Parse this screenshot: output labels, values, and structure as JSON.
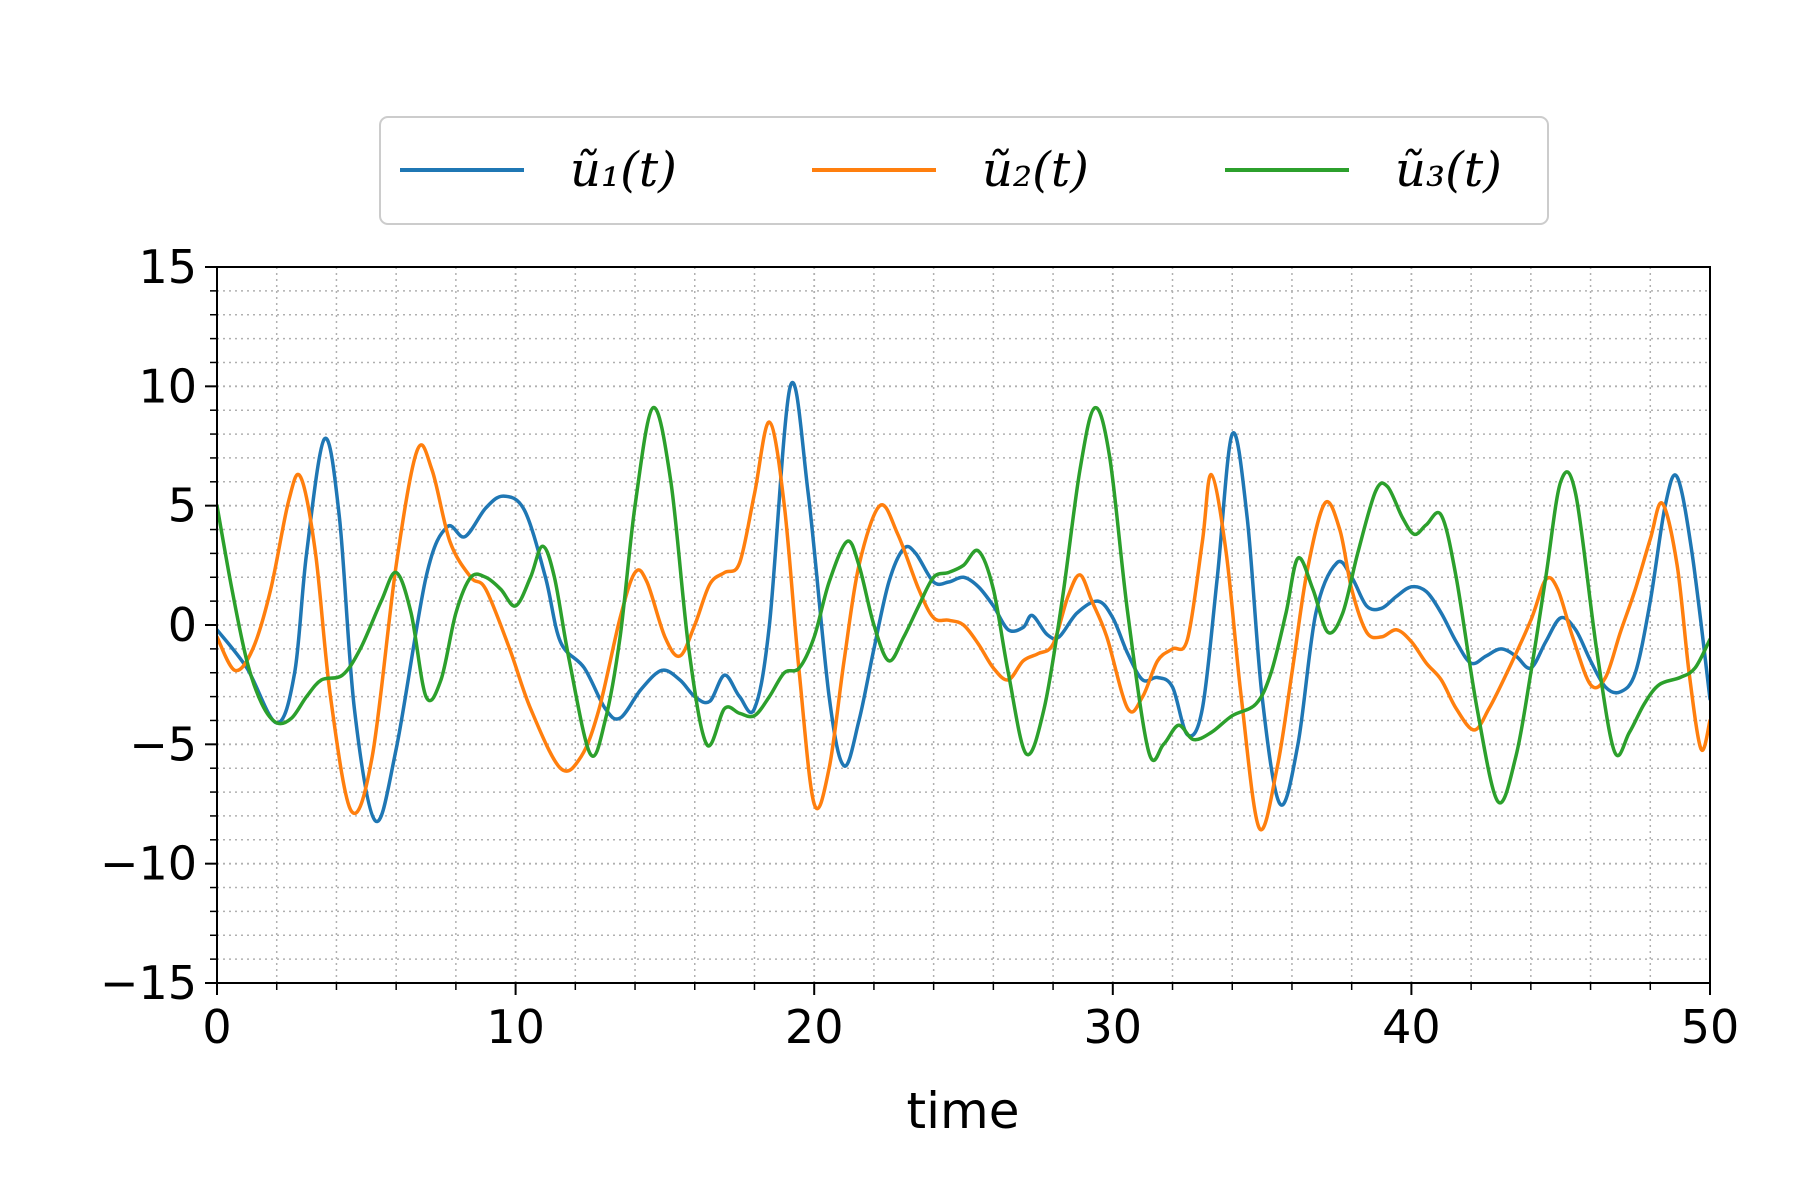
{
  "chart_data": {
    "type": "line",
    "title": "",
    "xlabel": "time",
    "ylabel": "",
    "xlim": [
      0,
      50
    ],
    "ylim": [
      -15,
      15
    ],
    "xticks": [
      0,
      10,
      20,
      30,
      40,
      50
    ],
    "xtick_labels": [
      "0",
      "10",
      "20",
      "30",
      "40",
      "50"
    ],
    "yticks": [
      15,
      10,
      5,
      0,
      -5,
      -10,
      -15
    ],
    "ytick_labels": [
      "15",
      "10",
      "5",
      "0",
      "−5",
      "−10",
      "−15"
    ],
    "grid": true,
    "legend_placement": "top-center",
    "series": [
      {
        "name": "ũ₁(t)",
        "color": "#1f77b4",
        "points": [
          [
            0,
            -0.2
          ],
          [
            1,
            -1.8
          ],
          [
            2,
            -4.1
          ],
          [
            2.6,
            -2.0
          ],
          [
            3.0,
            3.0
          ],
          [
            3.6,
            7.8
          ],
          [
            4.1,
            4.5
          ],
          [
            4.6,
            -3.5
          ],
          [
            5.3,
            -8.2
          ],
          [
            6.0,
            -5.2
          ],
          [
            7.0,
            2.0
          ],
          [
            7.7,
            4.1
          ],
          [
            8.3,
            3.7
          ],
          [
            9.0,
            4.9
          ],
          [
            9.6,
            5.4
          ],
          [
            10.3,
            4.8
          ],
          [
            11.0,
            2.0
          ],
          [
            11.5,
            -0.7
          ],
          [
            12.3,
            -1.8
          ],
          [
            13.0,
            -3.5
          ],
          [
            13.5,
            -3.9
          ],
          [
            14.2,
            -2.7
          ],
          [
            14.9,
            -1.9
          ],
          [
            15.5,
            -2.3
          ],
          [
            16.0,
            -3.0
          ],
          [
            16.5,
            -3.2
          ],
          [
            17.0,
            -2.1
          ],
          [
            17.5,
            -3.0
          ],
          [
            18.0,
            -3.5
          ],
          [
            18.5,
            0.0
          ],
          [
            19.2,
            10.0
          ],
          [
            19.8,
            5.5
          ],
          [
            20.5,
            -3.0
          ],
          [
            21.0,
            -5.9
          ],
          [
            21.5,
            -4.0
          ],
          [
            22.0,
            -1.0
          ],
          [
            22.5,
            1.8
          ],
          [
            23.0,
            3.2
          ],
          [
            23.4,
            3.0
          ],
          [
            24.0,
            1.8
          ],
          [
            24.5,
            1.8
          ],
          [
            25.0,
            2.0
          ],
          [
            25.5,
            1.6
          ],
          [
            26.0,
            0.8
          ],
          [
            26.5,
            -0.2
          ],
          [
            27.0,
            -0.1
          ],
          [
            27.3,
            0.4
          ],
          [
            27.8,
            -0.4
          ],
          [
            28.2,
            -0.5
          ],
          [
            28.8,
            0.5
          ],
          [
            29.5,
            1.0
          ],
          [
            30.0,
            0.3
          ],
          [
            30.5,
            -1.2
          ],
          [
            31.0,
            -2.3
          ],
          [
            31.5,
            -2.2
          ],
          [
            32.0,
            -2.6
          ],
          [
            32.5,
            -4.6
          ],
          [
            33.0,
            -3.5
          ],
          [
            33.5,
            2.0
          ],
          [
            34.0,
            8.0
          ],
          [
            34.5,
            4.5
          ],
          [
            35.0,
            -3.0
          ],
          [
            35.6,
            -7.5
          ],
          [
            36.2,
            -5.0
          ],
          [
            36.8,
            0.5
          ],
          [
            37.5,
            2.6
          ],
          [
            38.0,
            2.0
          ],
          [
            38.5,
            0.8
          ],
          [
            39.0,
            0.7
          ],
          [
            39.5,
            1.2
          ],
          [
            40.0,
            1.6
          ],
          [
            40.5,
            1.4
          ],
          [
            41.0,
            0.5
          ],
          [
            41.5,
            -0.7
          ],
          [
            42.0,
            -1.6
          ],
          [
            42.5,
            -1.3
          ],
          [
            43.0,
            -1.0
          ],
          [
            43.5,
            -1.3
          ],
          [
            44.0,
            -1.8
          ],
          [
            44.5,
            -0.7
          ],
          [
            45.0,
            0.3
          ],
          [
            45.5,
            -0.2
          ],
          [
            46.0,
            -1.5
          ],
          [
            46.5,
            -2.6
          ],
          [
            47.0,
            -2.8
          ],
          [
            47.5,
            -2.0
          ],
          [
            48.0,
            1.0
          ],
          [
            48.5,
            5.0
          ],
          [
            48.9,
            6.2
          ],
          [
            49.4,
            3.0
          ],
          [
            50,
            -3.1
          ]
        ]
      },
      {
        "name": "ũ₂(t)",
        "color": "#ff7f0e",
        "points": [
          [
            0,
            -0.5
          ],
          [
            0.6,
            -1.9
          ],
          [
            1.2,
            -1.0
          ],
          [
            1.8,
            1.5
          ],
          [
            2.4,
            5.2
          ],
          [
            2.8,
            6.2
          ],
          [
            3.3,
            3.0
          ],
          [
            3.8,
            -3.0
          ],
          [
            4.5,
            -7.8
          ],
          [
            5.2,
            -5.5
          ],
          [
            6.0,
            2.5
          ],
          [
            6.7,
            7.3
          ],
          [
            7.2,
            6.5
          ],
          [
            7.8,
            3.5
          ],
          [
            8.5,
            2.0
          ],
          [
            9.0,
            1.5
          ],
          [
            9.8,
            -1.0
          ],
          [
            10.5,
            -3.5
          ],
          [
            11.5,
            -6.0
          ],
          [
            12.2,
            -5.5
          ],
          [
            12.8,
            -3.5
          ],
          [
            13.5,
            0.3
          ],
          [
            14.0,
            2.2
          ],
          [
            14.4,
            1.8
          ],
          [
            15.0,
            -0.5
          ],
          [
            15.5,
            -1.3
          ],
          [
            16.0,
            0.0
          ],
          [
            16.5,
            1.7
          ],
          [
            17.0,
            2.2
          ],
          [
            17.5,
            2.6
          ],
          [
            18.0,
            5.5
          ],
          [
            18.5,
            8.5
          ],
          [
            19.0,
            5.0
          ],
          [
            19.5,
            -2.0
          ],
          [
            20.0,
            -7.5
          ],
          [
            20.5,
            -6.0
          ],
          [
            21.0,
            -1.5
          ],
          [
            21.5,
            2.5
          ],
          [
            22.2,
            5.0
          ],
          [
            22.8,
            3.8
          ],
          [
            23.5,
            1.5
          ],
          [
            24.0,
            0.3
          ],
          [
            24.5,
            0.2
          ],
          [
            25.0,
            0.0
          ],
          [
            25.5,
            -0.8
          ],
          [
            26.0,
            -1.8
          ],
          [
            26.5,
            -2.3
          ],
          [
            27.0,
            -1.5
          ],
          [
            27.5,
            -1.2
          ],
          [
            28.0,
            -0.8
          ],
          [
            28.5,
            1.2
          ],
          [
            28.9,
            2.1
          ],
          [
            29.3,
            1.0
          ],
          [
            29.8,
            -0.5
          ],
          [
            30.5,
            -3.5
          ],
          [
            31.0,
            -3.0
          ],
          [
            31.5,
            -1.5
          ],
          [
            32.0,
            -1.0
          ],
          [
            32.5,
            -0.6
          ],
          [
            33.0,
            3.5
          ],
          [
            33.3,
            6.3
          ],
          [
            33.8,
            3.0
          ],
          [
            34.3,
            -3.0
          ],
          [
            34.9,
            -8.5
          ],
          [
            35.5,
            -6.0
          ],
          [
            36.0,
            -2.0
          ],
          [
            36.5,
            2.2
          ],
          [
            37.1,
            5.1
          ],
          [
            37.6,
            4.0
          ],
          [
            38.0,
            1.5
          ],
          [
            38.5,
            -0.3
          ],
          [
            39.0,
            -0.5
          ],
          [
            39.5,
            -0.2
          ],
          [
            40.0,
            -0.7
          ],
          [
            40.5,
            -1.6
          ],
          [
            41.0,
            -2.3
          ],
          [
            41.5,
            -3.5
          ],
          [
            42.1,
            -4.4
          ],
          [
            42.6,
            -3.5
          ],
          [
            43.2,
            -2.0
          ],
          [
            44.0,
            0.2
          ],
          [
            44.5,
            1.9
          ],
          [
            44.9,
            1.5
          ],
          [
            45.4,
            -0.5
          ],
          [
            46.0,
            -2.5
          ],
          [
            46.5,
            -2.2
          ],
          [
            47.0,
            -0.3
          ],
          [
            47.5,
            1.5
          ],
          [
            48.0,
            3.6
          ],
          [
            48.4,
            5.1
          ],
          [
            48.9,
            2.5
          ],
          [
            49.3,
            -2.0
          ],
          [
            49.7,
            -5.2
          ],
          [
            50,
            -4.0
          ]
        ]
      },
      {
        "name": "ũ₃(t)",
        "color": "#2ca02c",
        "points": [
          [
            0,
            5.0
          ],
          [
            0.5,
            1.5
          ],
          [
            1.0,
            -1.5
          ],
          [
            1.5,
            -3.3
          ],
          [
            2.0,
            -4.1
          ],
          [
            2.5,
            -3.9
          ],
          [
            3.0,
            -3.0
          ],
          [
            3.5,
            -2.3
          ],
          [
            4.2,
            -2.1
          ],
          [
            4.8,
            -1.0
          ],
          [
            5.5,
            1.0
          ],
          [
            6.0,
            2.2
          ],
          [
            6.5,
            0.5
          ],
          [
            7.0,
            -3.0
          ],
          [
            7.5,
            -2.3
          ],
          [
            8.0,
            0.5
          ],
          [
            8.5,
            2.0
          ],
          [
            9.0,
            2.0
          ],
          [
            9.5,
            1.5
          ],
          [
            10.0,
            0.8
          ],
          [
            10.5,
            2.0
          ],
          [
            10.9,
            3.3
          ],
          [
            11.3,
            2.0
          ],
          [
            11.8,
            -1.5
          ],
          [
            12.5,
            -5.4
          ],
          [
            13.0,
            -4.0
          ],
          [
            13.5,
            -0.5
          ],
          [
            14.0,
            5.0
          ],
          [
            14.6,
            9.1
          ],
          [
            15.2,
            6.0
          ],
          [
            15.8,
            -1.0
          ],
          [
            16.4,
            -5.0
          ],
          [
            17.0,
            -3.5
          ],
          [
            17.5,
            -3.7
          ],
          [
            18.0,
            -3.8
          ],
          [
            18.5,
            -3.0
          ],
          [
            19.0,
            -2.0
          ],
          [
            19.5,
            -1.8
          ],
          [
            20.0,
            -0.5
          ],
          [
            20.5,
            1.8
          ],
          [
            21.1,
            3.5
          ],
          [
            21.5,
            2.5
          ],
          [
            22.0,
            0.0
          ],
          [
            22.5,
            -1.5
          ],
          [
            23.0,
            -0.5
          ],
          [
            23.5,
            0.8
          ],
          [
            24.0,
            2.0
          ],
          [
            24.5,
            2.2
          ],
          [
            25.0,
            2.5
          ],
          [
            25.5,
            3.1
          ],
          [
            26.0,
            1.5
          ],
          [
            26.5,
            -2.0
          ],
          [
            27.1,
            -5.4
          ],
          [
            27.7,
            -3.5
          ],
          [
            28.3,
            1.0
          ],
          [
            28.9,
            6.5
          ],
          [
            29.4,
            9.1
          ],
          [
            29.9,
            7.0
          ],
          [
            30.5,
            0.5
          ],
          [
            31.2,
            -5.3
          ],
          [
            31.7,
            -5.0
          ],
          [
            32.2,
            -4.2
          ],
          [
            32.7,
            -4.8
          ],
          [
            33.3,
            -4.5
          ],
          [
            34.0,
            -3.8
          ],
          [
            34.8,
            -3.3
          ],
          [
            35.3,
            -2.0
          ],
          [
            35.8,
            0.5
          ],
          [
            36.2,
            2.8
          ],
          [
            36.7,
            1.5
          ],
          [
            37.2,
            -0.3
          ],
          [
            37.7,
            0.5
          ],
          [
            38.2,
            3.0
          ],
          [
            38.8,
            5.6
          ],
          [
            39.2,
            5.8
          ],
          [
            39.7,
            4.5
          ],
          [
            40.1,
            3.8
          ],
          [
            40.5,
            4.2
          ],
          [
            41.0,
            4.6
          ],
          [
            41.5,
            2.0
          ],
          [
            42.2,
            -3.5
          ],
          [
            42.9,
            -7.4
          ],
          [
            43.5,
            -5.5
          ],
          [
            44.0,
            -2.0
          ],
          [
            44.5,
            2.0
          ],
          [
            45.0,
            6.0
          ],
          [
            45.5,
            5.5
          ],
          [
            46.2,
            -1.0
          ],
          [
            46.8,
            -5.3
          ],
          [
            47.3,
            -4.5
          ],
          [
            47.8,
            -3.3
          ],
          [
            48.3,
            -2.5
          ],
          [
            49.0,
            -2.2
          ],
          [
            49.5,
            -1.8
          ],
          [
            50,
            -0.6
          ]
        ]
      }
    ]
  }
}
